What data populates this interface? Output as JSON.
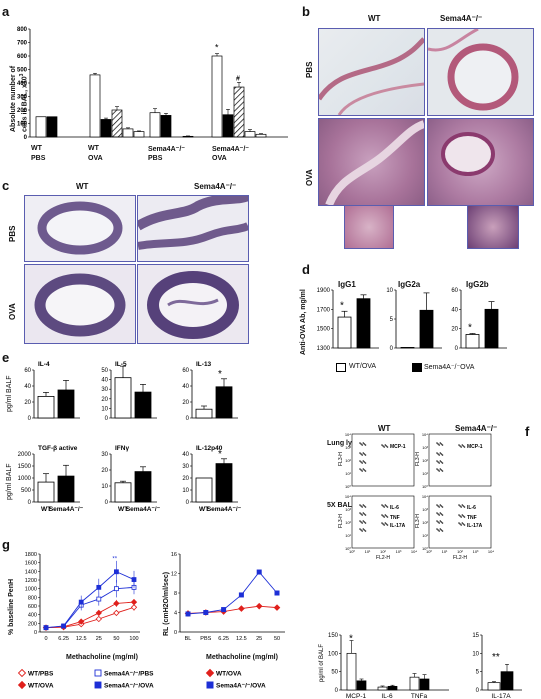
{
  "panels": {
    "a": "a",
    "b": "b",
    "c": "c",
    "d": "d",
    "e": "e",
    "f": "f",
    "g": "g"
  },
  "panel_a": {
    "ylabel_line1": "Absolute number of",
    "ylabel_line2": "cells in BAL, x10",
    "ylabel_sup": "3",
    "yticks": [
      "0",
      "100",
      "200",
      "300",
      "400",
      "500",
      "600",
      "700",
      "800"
    ],
    "groups": [
      {
        "genotype": "WT",
        "treatment": "PBS"
      },
      {
        "genotype": "WT",
        "treatment": "OVA"
      },
      {
        "genotype": "Sema4A⁻/⁻",
        "treatment": "PBS"
      },
      {
        "genotype": "Sema4A⁻/⁻",
        "treatment": "OVA"
      }
    ],
    "markers": {
      "star": "*",
      "hash": "#"
    }
  },
  "panel_b": {
    "col1": "WT",
    "col2": "Sema4A⁻/⁻",
    "row1": "PBS",
    "row2": "OVA"
  },
  "panel_c": {
    "col1": "WT",
    "col2": "Sema4A⁻/⁻",
    "row1": "PBS",
    "row2": "OVA"
  },
  "panel_d": {
    "ylabel": "Anti-OVA Ab, mg/ml",
    "charts": [
      {
        "title": "IgG1",
        "yticks": [
          "1300",
          "1500",
          "1700",
          "1900"
        ]
      },
      {
        "title": "IgG2a",
        "yticks": [
          "0",
          "5",
          "10"
        ]
      },
      {
        "title": "IgG2b",
        "yticks": [
          "0",
          "20",
          "40",
          "60"
        ]
      }
    ],
    "legend": [
      "WT/OVA",
      "Sema4A⁻/⁻OVA"
    ],
    "star": "*"
  },
  "panel_e": {
    "ylabel_top": "pg/ml BALF",
    "ylabel_bottom": "pg/ml BALF",
    "charts": [
      {
        "title": "IL-4",
        "yticks": [
          "0",
          "20",
          "40",
          "60"
        ]
      },
      {
        "title": "IL-5",
        "yticks": [
          "0",
          "10",
          "20",
          "30",
          "40",
          "50"
        ]
      },
      {
        "title": "IL-13",
        "yticks": [
          "0",
          "20",
          "40",
          "60"
        ]
      },
      {
        "title": "TGF-β active",
        "yticks": [
          "0",
          "500",
          "1000",
          "1500",
          "2000"
        ]
      },
      {
        "title": "IFNγ",
        "yticks": [
          "0",
          "10",
          "20",
          "30"
        ]
      },
      {
        "title": "IL-12p40",
        "yticks": [
          "0",
          "10",
          "20",
          "30",
          "40"
        ]
      }
    ],
    "xcats": [
      "WT",
      "Sema4A⁻/⁻"
    ],
    "star": "*"
  },
  "panel_f": {
    "col1": "WT",
    "col2": "Sema4A⁻/⁻",
    "row1": "Lung lysate",
    "row2": "5X BALF",
    "axis_x": "FL2-H",
    "axis_y": "FL3-H",
    "labels_top": [
      "MCP-1"
    ],
    "labels_bottom": [
      "IL-6",
      "TNF",
      "IL-17A"
    ],
    "ylabel": "pg/ml of BALF",
    "bar_left_yticks": [
      "0",
      "50",
      "100",
      "150"
    ],
    "bar_right_yticks": [
      "0",
      "5",
      "10",
      "15"
    ],
    "bar_xcats": [
      "MCP-1",
      "IL-6",
      "TNFa",
      "IL-17A"
    ],
    "star": "*",
    "stars2": "**",
    "decades": [
      "10⁰",
      "10¹",
      "10²",
      "10³",
      "10⁴"
    ]
  },
  "panel_g": {
    "left": {
      "ylabel": "% baseline PenH",
      "yticks": [
        "0",
        "200",
        "400",
        "600",
        "800",
        "1000",
        "1200",
        "1400",
        "1600",
        "1800"
      ],
      "xticks": [
        "0",
        "6.25",
        "12.5",
        "25",
        "50",
        "100"
      ],
      "xlabel": "Methacholine (mg/ml)",
      "star": "**"
    },
    "right": {
      "ylabel": "RL (cmH2O/ml/sec)",
      "yticks": [
        "0",
        "4",
        "8",
        "12",
        "16"
      ],
      "xticks": [
        "BL",
        "PBS",
        "6.25",
        "12.5",
        "25",
        "50"
      ],
      "xlabel": "Methacholine (mg/ml)"
    },
    "legend_left": [
      "WT/PBS",
      "Sema4A⁻/⁻/PBS",
      "WT/OVA",
      "Sema4A⁻/⁻/OVA"
    ],
    "legend_right": [
      "WT/OVA",
      "Sema4A⁻/⁻/OVA"
    ],
    "colors": {
      "wt": "#e0201c",
      "sema": "#1d2fd6"
    }
  },
  "chart_data": [
    {
      "type": "bar",
      "title": "",
      "categories": [
        "WT PBS",
        "WT OVA",
        "Sema4A-/- PBS",
        "Sema4A-/- OVA"
      ],
      "series": [
        {
          "values": [
            150,
            460,
            180,
            600
          ]
        },
        {
          "values": [
            150,
            130,
            160,
            165
          ]
        },
        {
          "values": [
            0,
            200,
            0,
            370
          ]
        },
        {
          "values": [
            0,
            60,
            5,
            40
          ]
        },
        {
          "values": [
            0,
            40,
            0,
            20
          ]
        }
      ],
      "ylim": [
        0,
        800
      ]
    },
    {
      "type": "bar",
      "title": "IgG1",
      "categories": [
        "WT/OVA",
        "Sema4A-/-/OVA"
      ],
      "values": [
        1620,
        1810
      ],
      "ylim": [
        1300,
        1900
      ]
    },
    {
      "type": "bar",
      "title": "IgG2a",
      "categories": [
        "WT/OVA",
        "Sema4A-/-/OVA"
      ],
      "values": [
        0.1,
        6.5
      ],
      "ylim": [
        0,
        10
      ]
    },
    {
      "type": "bar",
      "title": "IgG2b",
      "categories": [
        "WT/OVA",
        "Sema4A-/-/OVA"
      ],
      "values": [
        14,
        40
      ],
      "ylim": [
        0,
        60
      ]
    },
    {
      "type": "bar",
      "title": "IL-4",
      "categories": [
        "WT",
        "Sema4A-/-"
      ],
      "values": [
        27,
        35
      ],
      "ylim": [
        0,
        60
      ]
    },
    {
      "type": "bar",
      "title": "IL-5",
      "categories": [
        "WT",
        "Sema4A-/-"
      ],
      "values": [
        42,
        27
      ],
      "ylim": [
        0,
        50
      ]
    },
    {
      "type": "bar",
      "title": "IL-13",
      "categories": [
        "WT",
        "Sema4A-/-"
      ],
      "values": [
        11,
        39
      ],
      "ylim": [
        0,
        60
      ]
    },
    {
      "type": "bar",
      "title": "TGF-β active",
      "categories": [
        "WT",
        "Sema4A-/-"
      ],
      "values": [
        830,
        1080
      ],
      "ylim": [
        0,
        2000
      ]
    },
    {
      "type": "bar",
      "title": "IFNγ",
      "categories": [
        "WT",
        "Sema4A-/-"
      ],
      "values": [
        12,
        19
      ],
      "ylim": [
        0,
        30
      ]
    },
    {
      "type": "bar",
      "title": "IL-12p40",
      "categories": [
        "WT",
        "Sema4A-/-"
      ],
      "values": [
        20,
        32
      ],
      "ylim": [
        0,
        40
      ]
    },
    {
      "type": "bar",
      "title": "",
      "categories": [
        "MCP-1",
        "IL-6",
        "TNFa"
      ],
      "series": [
        {
          "values": [
            100,
            8,
            35
          ]
        },
        {
          "values": [
            25,
            10,
            30
          ]
        }
      ],
      "ylim": [
        0,
        150
      ]
    },
    {
      "type": "bar",
      "title": "",
      "categories": [
        "IL-17A"
      ],
      "series": [
        {
          "values": [
            2
          ]
        },
        {
          "values": [
            5
          ]
        }
      ],
      "ylim": [
        0,
        15
      ]
    },
    {
      "type": "line",
      "title": "",
      "x": [
        "0",
        "6.25",
        "12.5",
        "25",
        "50",
        "100"
      ],
      "series": [
        {
          "name": "WT/PBS",
          "values": [
            100,
            110,
            180,
            300,
            440,
            570
          ]
        },
        {
          "name": "Sema4A⁻/⁻/PBS",
          "values": [
            100,
            130,
            620,
            760,
            1000,
            1030
          ]
        },
        {
          "name": "WT/OVA",
          "values": [
            100,
            120,
            240,
            440,
            660,
            690
          ]
        },
        {
          "name": "Sema4A⁻/⁻/OVA",
          "values": [
            100,
            140,
            690,
            1030,
            1390,
            1210
          ]
        }
      ],
      "ylim": [
        0,
        1800
      ]
    },
    {
      "type": "line",
      "title": "",
      "x": [
        "BL",
        "PBS",
        "6.25",
        "12.5",
        "25",
        "50"
      ],
      "series": [
        {
          "name": "WT/OVA",
          "values": [
            3.8,
            4,
            4.2,
            4.8,
            5.3,
            5
          ]
        },
        {
          "name": "Sema4A⁻/⁻/OVA",
          "values": [
            3.7,
            4,
            4.6,
            7.6,
            12.3,
            8
          ]
        }
      ],
      "ylim": [
        0,
        16
      ]
    }
  ]
}
